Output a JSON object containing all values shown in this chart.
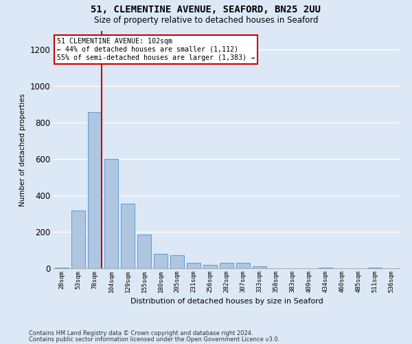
{
  "title1": "51, CLEMENTINE AVENUE, SEAFORD, BN25 2UU",
  "title2": "Size of property relative to detached houses in Seaford",
  "xlabel": "Distribution of detached houses by size in Seaford",
  "ylabel": "Number of detached properties",
  "bin_labels": [
    "28sqm",
    "53sqm",
    "78sqm",
    "104sqm",
    "129sqm",
    "155sqm",
    "180sqm",
    "205sqm",
    "231sqm",
    "256sqm",
    "282sqm",
    "307sqm",
    "333sqm",
    "358sqm",
    "383sqm",
    "409sqm",
    "434sqm",
    "460sqm",
    "485sqm",
    "511sqm",
    "536sqm"
  ],
  "bar_values": [
    5,
    315,
    855,
    600,
    355,
    185,
    80,
    70,
    30,
    20,
    30,
    30,
    10,
    0,
    0,
    0,
    5,
    0,
    0,
    5,
    0
  ],
  "bar_color": "#aec6e0",
  "bar_edgecolor": "#5b9bd5",
  "background_color": "#dce8f5",
  "grid_color": "#ffffff",
  "annotation_text": "51 CLEMENTINE AVENUE: 102sqm\n← 44% of detached houses are smaller (1,112)\n55% of semi-detached houses are larger (1,383) →",
  "annotation_box_color": "#ffffff",
  "annotation_box_edgecolor": "#cc0000",
  "vline_color": "#cc0000",
  "ylim": [
    0,
    1300
  ],
  "yticks": [
    0,
    200,
    400,
    600,
    800,
    1000,
    1200
  ],
  "footer1": "Contains HM Land Registry data © Crown copyright and database right 2024.",
  "footer2": "Contains public sector information licensed under the Open Government Licence v3.0."
}
